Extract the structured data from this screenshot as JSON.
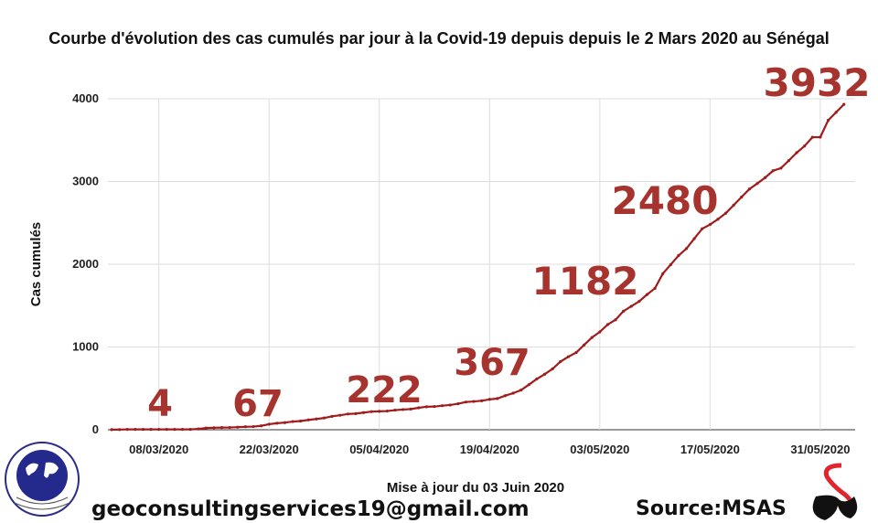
{
  "chart_data": {
    "type": "line",
    "title": "Courbe d'évolution des cas cumulés par jour à la Covid-19 depuis depuis le 2 Mars 2020 au Sénégal",
    "xlabel": "",
    "ylabel": "Cas cumulés",
    "x_start": "02/03/2020",
    "x_end": "03/06/2020",
    "x_ticks": [
      "08/03/2020",
      "22/03/2020",
      "05/04/2020",
      "19/04/2020",
      "03/05/2020",
      "17/05/2020",
      "31/05/2020"
    ],
    "y_ticks": [
      "0",
      "1000",
      "2000",
      "3000",
      "4000"
    ],
    "ylim": [
      0,
      4000
    ],
    "grid": true,
    "line_color": "#a01c1c",
    "annotation_color": "#a6332d",
    "series": [
      {
        "values": [
          1,
          2,
          4,
          4,
          4,
          4,
          4,
          4,
          4,
          4,
          4,
          10,
          21,
          24,
          26,
          27,
          31,
          36,
          38,
          47,
          67,
          79,
          86,
          99,
          105,
          119,
          130,
          142,
          162,
          175,
          190,
          195,
          207,
          219,
          222,
          226,
          237,
          244,
          250,
          265,
          278,
          280,
          291,
          299,
          314,
          335,
          342,
          350,
          367,
          377,
          412,
          442,
          479,
          545,
          614,
          671,
          736,
          823,
          882,
          933,
          1024,
          1115,
          1182,
          1271,
          1329,
          1433,
          1492,
          1551,
          1634,
          1709,
          1886,
          1995,
          2105,
          2189,
          2310,
          2429,
          2480,
          2544,
          2617,
          2714,
          2812,
          2909,
          2976,
          3047,
          3130,
          3161,
          3253,
          3348,
          3429,
          3535,
          3536,
          3739,
          3836,
          3932
        ]
      }
    ],
    "annotations": [
      {
        "text": "4",
        "date": "08/03/2020",
        "value": 4
      },
      {
        "text": "67",
        "date": "22/03/2020",
        "value": 67
      },
      {
        "text": "222",
        "date": "05/04/2020",
        "value": 222
      },
      {
        "text": "367",
        "date": "19/04/2020",
        "value": 367
      },
      {
        "text": "1182",
        "date": "03/05/2020",
        "value": 1182
      },
      {
        "text": "2480",
        "date": "17/05/2020",
        "value": 2480
      },
      {
        "text": "3932",
        "date": "03/06/2020",
        "value": 3932
      }
    ]
  },
  "footer": {
    "update": "Mise à jour du 03 Juin 2020",
    "email": "geoconsultingservices19@gmail.com",
    "source": "Source:MSAS"
  },
  "logos": {
    "geo": "GEO CONSULTING SERVICES",
    "msas": "MSAS"
  }
}
